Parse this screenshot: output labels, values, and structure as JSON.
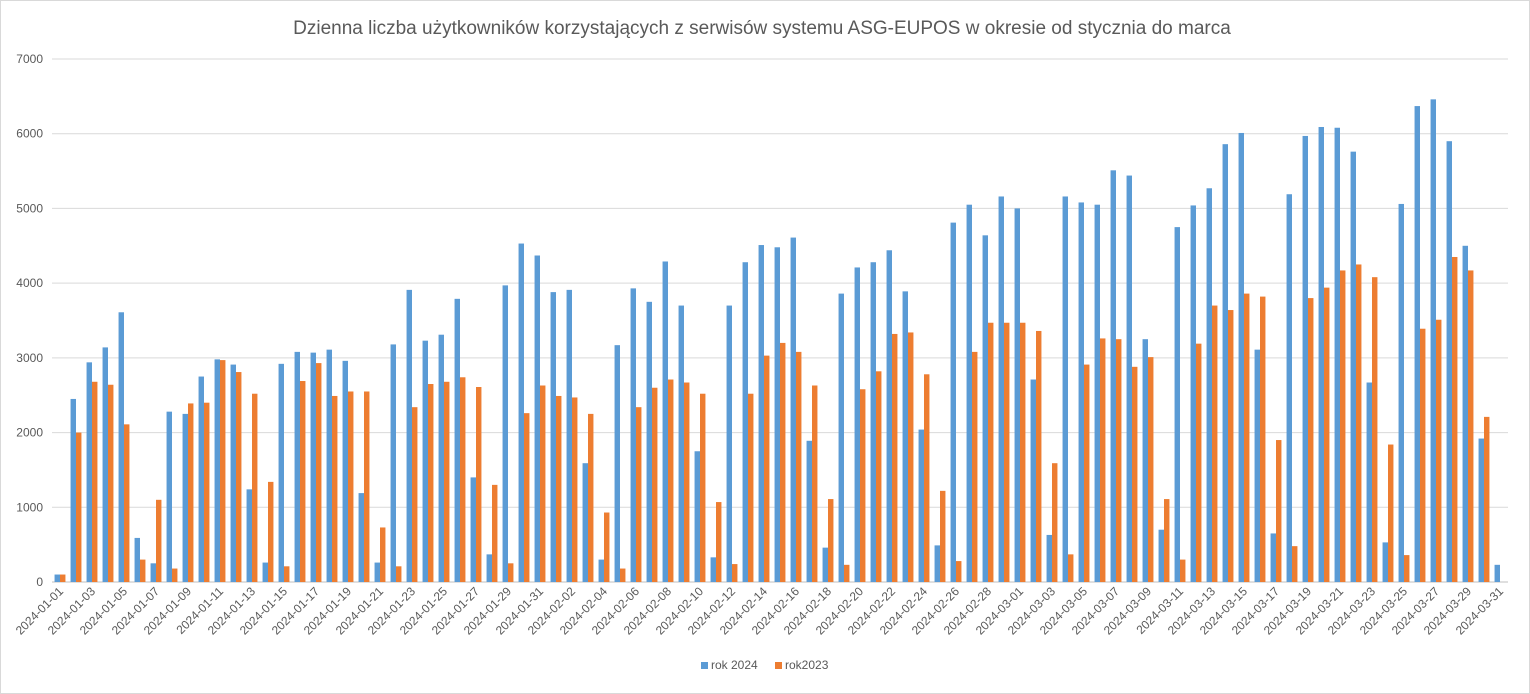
{
  "chart_data": {
    "type": "bar",
    "title": "Dzienna liczba użytkowników korzystających z serwisów systemu ASG-EUPOS w okresie od stycznia do marca",
    "xlabel": "",
    "ylabel": "",
    "ylim": [
      0,
      7000
    ],
    "yticks": [
      0,
      1000,
      2000,
      3000,
      4000,
      5000,
      6000,
      7000
    ],
    "grid": true,
    "legend_position": "bottom",
    "categories": [
      "2024-01-01",
      "2024-01-02",
      "2024-01-03",
      "2024-01-04",
      "2024-01-05",
      "2024-01-06",
      "2024-01-07",
      "2024-01-08",
      "2024-01-09",
      "2024-01-10",
      "2024-01-11",
      "2024-01-12",
      "2024-01-13",
      "2024-01-14",
      "2024-01-15",
      "2024-01-16",
      "2024-01-17",
      "2024-01-18",
      "2024-01-19",
      "2024-01-20",
      "2024-01-21",
      "2024-01-22",
      "2024-01-23",
      "2024-01-24",
      "2024-01-25",
      "2024-01-26",
      "2024-01-27",
      "2024-01-28",
      "2024-01-29",
      "2024-01-30",
      "2024-01-31",
      "2024-02-01",
      "2024-02-02",
      "2024-02-03",
      "2024-02-04",
      "2024-02-05",
      "2024-02-06",
      "2024-02-07",
      "2024-02-08",
      "2024-02-09",
      "2024-02-10",
      "2024-02-11",
      "2024-02-12",
      "2024-02-13",
      "2024-02-14",
      "2024-02-15",
      "2024-02-16",
      "2024-02-17",
      "2024-02-18",
      "2024-02-19",
      "2024-02-20",
      "2024-02-21",
      "2024-02-22",
      "2024-02-23",
      "2024-02-24",
      "2024-02-25",
      "2024-02-26",
      "2024-02-27",
      "2024-02-28",
      "2024-02-29",
      "2024-03-01",
      "2024-03-02",
      "2024-03-03",
      "2024-03-04",
      "2024-03-05",
      "2024-03-06",
      "2024-03-07",
      "2024-03-08",
      "2024-03-09",
      "2024-03-10",
      "2024-03-11",
      "2024-03-12",
      "2024-03-13",
      "2024-03-14",
      "2024-03-15",
      "2024-03-16",
      "2024-03-17",
      "2024-03-18",
      "2024-03-19",
      "2024-03-20",
      "2024-03-21",
      "2024-03-22",
      "2024-03-23",
      "2024-03-24",
      "2024-03-25",
      "2024-03-26",
      "2024-03-27",
      "2024-03-28",
      "2024-03-29",
      "2024-03-30",
      "2024-03-31"
    ],
    "tick_labels": [
      "2024-01-01",
      "2024-01-03",
      "2024-01-05",
      "2024-01-07",
      "2024-01-09",
      "2024-01-11",
      "2024-01-13",
      "2024-01-15",
      "2024-01-17",
      "2024-01-19",
      "2024-01-21",
      "2024-01-23",
      "2024-01-25",
      "2024-01-27",
      "2024-01-29",
      "2024-01-31",
      "2024-02-02",
      "2024-02-04",
      "2024-02-06",
      "2024-02-08",
      "2024-02-10",
      "2024-02-12",
      "2024-02-14",
      "2024-02-16",
      "2024-02-18",
      "2024-02-20",
      "2024-02-22",
      "2024-02-24",
      "2024-02-26",
      "2024-02-28",
      "2024-03-01",
      "2024-03-03",
      "2024-03-05",
      "2024-03-07",
      "2024-03-09",
      "2024-03-11",
      "2024-03-13",
      "2024-03-15",
      "2024-03-17",
      "2024-03-19",
      "2024-03-21",
      "2024-03-23",
      "2024-03-25",
      "2024-03-27",
      "2024-03-29",
      "2024-03-31"
    ],
    "series": [
      {
        "name": "rok 2024",
        "color": "#5b9bd5",
        "values": [
          100,
          2450,
          2940,
          3140,
          3610,
          590,
          250,
          2280,
          2250,
          2750,
          2980,
          2910,
          1240,
          260,
          2920,
          3080,
          3070,
          3110,
          2960,
          1190,
          260,
          3180,
          3910,
          3230,
          3310,
          3790,
          1400,
          370,
          3970,
          4530,
          4370,
          3880,
          3910,
          1590,
          300,
          3170,
          3930,
          3750,
          4290,
          3700,
          1750,
          330,
          3700,
          4280,
          4510,
          4480,
          4610,
          1890,
          460,
          3860,
          4210,
          4280,
          4440,
          3890,
          2040,
          490,
          4810,
          5050,
          4640,
          5160,
          5000,
          2710,
          630,
          5160,
          5080,
          5050,
          5510,
          5440,
          3250,
          700,
          4750,
          5040,
          5270,
          5860,
          6010,
          3110,
          650,
          5190,
          5970,
          6090,
          6080,
          5760,
          2670,
          530,
          5060,
          6370,
          6460,
          5900,
          4500,
          1920,
          230
        ]
      },
      {
        "name": "rok2023",
        "color": "#ed7d31",
        "values": [
          100,
          2000,
          2680,
          2640,
          2110,
          300,
          1100,
          180,
          2390,
          2400,
          2970,
          2810,
          2520,
          1340,
          210,
          2690,
          2930,
          2490,
          2550,
          2550,
          730,
          210,
          2340,
          2650,
          2680,
          2740,
          2610,
          1300,
          250,
          2260,
          2630,
          2490,
          2470,
          2250,
          930,
          180,
          2340,
          2600,
          2710,
          2670,
          2520,
          1070,
          240,
          2520,
          3030,
          3200,
          3080,
          2630,
          1110,
          230,
          2580,
          2820,
          3320,
          3340,
          2780,
          1220,
          280,
          3080,
          3470,
          3470,
          3470,
          3360,
          1590,
          370,
          2910,
          3260,
          3250,
          2880,
          3010,
          1110,
          300,
          3190,
          3700,
          3640,
          3860,
          3820,
          1900,
          480,
          3800,
          3940,
          4170,
          4250,
          4080,
          1840,
          360,
          3390,
          3510,
          4350,
          4170,
          2210,
          0
        ]
      }
    ]
  }
}
